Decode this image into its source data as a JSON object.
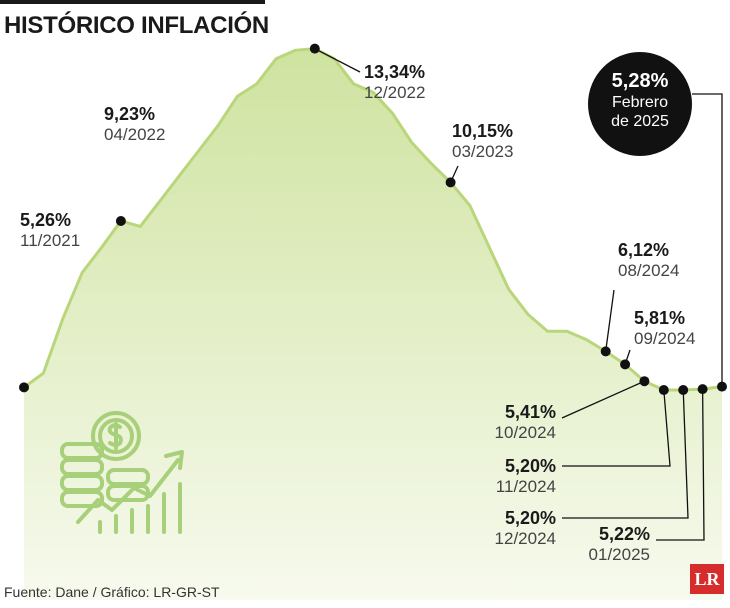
{
  "header": {
    "title": "HISTÓRICO INFLACIÓN"
  },
  "chart_data": {
    "type": "area",
    "title": "HISTÓRICO INFLACIÓN",
    "ylim": [
      0,
      14.5
    ],
    "series": [
      {
        "values": [
          5.26,
          5.6,
          6.9,
          8.0,
          8.6,
          9.23,
          9.1,
          9.7,
          10.3,
          10.9,
          11.5,
          12.2,
          12.5,
          13.1,
          13.3,
          13.34,
          13.1,
          12.5,
          12.3,
          11.8,
          11.1,
          10.6,
          10.15,
          9.6,
          8.6,
          7.6,
          7.0,
          6.6,
          6.6,
          6.4,
          6.12,
          5.81,
          5.41,
          5.2,
          5.2,
          5.22,
          5.28
        ]
      }
    ],
    "annotations": [
      {
        "value": "5,26%",
        "date": "11/2021"
      },
      {
        "value": "9,23%",
        "date": "04/2022"
      },
      {
        "value": "13,34%",
        "date": "12/2022"
      },
      {
        "value": "10,15%",
        "date": "03/2023"
      },
      {
        "value": "6,12%",
        "date": "08/2024"
      },
      {
        "value": "5,81%",
        "date": "09/2024"
      },
      {
        "value": "5,41%",
        "date": "10/2024"
      },
      {
        "value": "5,20%",
        "date": "11/2024"
      },
      {
        "value": "5,20%",
        "date": "12/2024"
      },
      {
        "value": "5,22%",
        "date": "01/2025"
      }
    ],
    "highlight": {
      "value": "5,28%",
      "line1": "Febrero",
      "line2": "de 2025"
    },
    "colors": {
      "fill_top": "#d3e6a8",
      "fill_bottom": "#f5f9ea",
      "line": "#b9d67a",
      "dot": "#111111",
      "icon": "#a8cf7a"
    }
  },
  "footer": {
    "source": "Fuente: Dane / Gráfico: LR-GR-ST",
    "logo": "LR"
  }
}
